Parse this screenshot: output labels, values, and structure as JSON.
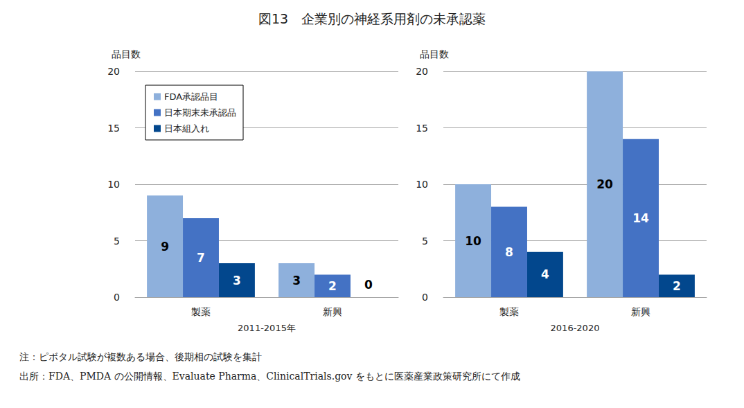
{
  "title": "図13　企業別の神経系用剤の未承認薬",
  "notes": [
    "注：ピボタル試験が複数ある場合、後期相の試験を集計",
    "出所：FDA、PMDA の公開情報、Evaluate Pharma、ClinicalTrials.gov をもとに医薬産業政策研究所にて作成"
  ],
  "chart_data": [
    {
      "type": "bar",
      "x_label": "2011-2015年",
      "y_label": "品目数",
      "categories": [
        "製薬",
        "新興"
      ],
      "series": [
        {
          "name": "FDA承認品目",
          "color": "#8eb0dc",
          "values": [
            9,
            3
          ]
        },
        {
          "name": "日本期末未承認品",
          "color": "#4472c4",
          "values": [
            7,
            2
          ]
        },
        {
          "name": "日本組入れ",
          "color": "#02478d",
          "values": [
            3,
            0
          ]
        }
      ],
      "ylim": [
        0,
        20
      ],
      "yticks": [
        0,
        5,
        10,
        15,
        20
      ],
      "grid": true,
      "data_labels": true,
      "legend": "upper left"
    },
    {
      "type": "bar",
      "x_label": "2016-2020",
      "y_label": "品目数",
      "categories": [
        "製薬",
        "新興"
      ],
      "series": [
        {
          "name": "FDA承認品目",
          "color": "#8eb0dc",
          "values": [
            10,
            20
          ]
        },
        {
          "name": "日本期末未承認品",
          "color": "#4472c4",
          "values": [
            8,
            14
          ]
        },
        {
          "name": "日本組入れ",
          "color": "#02478d",
          "values": [
            4,
            2
          ]
        }
      ],
      "ylim": [
        0,
        20
      ],
      "yticks": [
        0,
        5,
        10,
        15,
        20
      ],
      "grid": true,
      "data_labels": true
    }
  ]
}
